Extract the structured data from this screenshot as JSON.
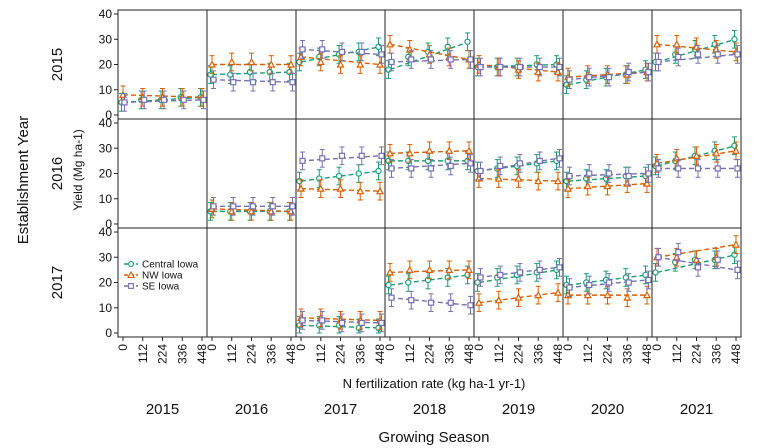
{
  "chart_data": {
    "type": "line",
    "title": "",
    "xlabel": "N fertilization rate (kg ha-1 yr-1)",
    "ylabel": "Yield (Mg ha-1)",
    "outer_xlabel": "Growing Season",
    "outer_ylabel": "Establishment Year",
    "x_ticks": [
      "0",
      "112",
      "224",
      "336",
      "448"
    ],
    "x_values": [
      0,
      112,
      224,
      336,
      448
    ],
    "y_ticks": [
      "0",
      "10",
      "20",
      "30",
      "40"
    ],
    "ylim": [
      0,
      40
    ],
    "columns": [
      "2015",
      "2016",
      "2017",
      "2018",
      "2019",
      "2020",
      "2021"
    ],
    "rows": [
      "2015",
      "2016",
      "2017"
    ],
    "legend": {
      "placement": "inside-left",
      "panel": "2017-2015"
    },
    "series": [
      {
        "name": "Central Iowa",
        "color": "#1a9e77"
      },
      {
        "name": "NW Iowa",
        "color": "#d95f02"
      },
      {
        "name": "SE Iowa",
        "color": "#7570b3"
      }
    ],
    "panels": [
      {
        "row": "2015",
        "col": "2015",
        "values": [
          [
            5,
            6,
            6,
            7,
            7
          ],
          [
            8,
            7,
            7,
            7,
            7
          ],
          [
            5,
            6,
            6,
            6,
            6
          ]
        ]
      },
      {
        "row": "2015",
        "col": "2016",
        "values": [
          [
            16,
            16,
            17,
            17,
            17
          ],
          [
            20,
            21,
            21,
            20,
            20
          ],
          [
            14,
            13,
            13,
            13,
            13
          ]
        ]
      },
      {
        "row": "2015",
        "col": "2017",
        "values": [
          [
            21,
            23,
            24,
            25,
            27
          ],
          [
            23,
            21,
            20,
            20,
            20
          ],
          [
            26,
            26,
            25,
            25,
            24
          ]
        ]
      },
      {
        "row": "2015",
        "col": "2018",
        "values": [
          [
            18,
            23,
            25,
            27,
            29
          ],
          [
            28,
            26,
            24,
            23,
            22
          ],
          [
            21,
            22,
            22,
            22,
            22
          ]
        ]
      },
      {
        "row": "2015",
        "col": "2019",
        "values": [
          [
            19,
            19,
            19,
            20,
            20
          ],
          [
            20,
            19,
            18,
            17,
            17
          ],
          [
            19,
            19,
            19,
            19,
            19
          ]
        ]
      },
      {
        "row": "2015",
        "col": "2020",
        "values": [
          [
            12,
            14,
            15,
            16,
            18
          ],
          [
            15,
            16,
            16,
            16,
            17
          ],
          [
            14,
            15,
            15,
            17,
            17
          ]
        ]
      },
      {
        "row": "2015",
        "col": "2021",
        "values": [
          [
            21,
            24,
            26,
            28,
            30
          ],
          [
            28,
            28,
            27,
            26,
            25
          ],
          [
            21,
            23,
            24,
            24,
            24
          ]
        ]
      },
      {
        "row": "2016",
        "col": "2016",
        "values": [
          [
            5,
            5,
            5,
            5,
            5
          ],
          [
            6,
            5,
            5,
            5,
            5
          ],
          [
            7,
            7,
            7,
            7,
            7
          ]
        ]
      },
      {
        "row": "2016",
        "col": "2017",
        "values": [
          [
            17,
            18,
            19,
            20,
            21
          ],
          [
            14,
            14,
            14,
            13,
            13
          ],
          [
            25,
            26,
            27,
            27,
            27
          ]
        ]
      },
      {
        "row": "2016",
        "col": "2018",
        "values": [
          [
            25,
            25,
            25,
            25,
            25
          ],
          [
            28,
            28,
            29,
            29,
            29
          ],
          [
            22,
            22,
            22,
            23,
            24
          ]
        ]
      },
      {
        "row": "2016",
        "col": "2019",
        "values": [
          [
            21,
            22,
            23,
            24,
            25
          ],
          [
            18,
            18,
            18,
            17,
            17
          ],
          [
            21,
            23,
            24,
            25,
            26
          ]
        ]
      },
      {
        "row": "2016",
        "col": "2020",
        "values": [
          [
            17,
            18,
            18,
            19,
            19
          ],
          [
            14,
            15,
            15,
            16,
            16
          ],
          [
            19,
            20,
            20,
            19,
            20
          ]
        ]
      },
      {
        "row": "2016",
        "col": "2021",
        "values": [
          [
            23,
            25,
            27,
            29,
            31
          ],
          [
            24,
            26,
            27,
            28,
            29
          ],
          [
            22,
            22,
            22,
            22,
            22
          ]
        ]
      },
      {
        "row": "2017",
        "col": "2017",
        "values": [
          [
            3,
            3,
            3,
            2,
            2
          ],
          [
            6,
            6,
            5,
            5,
            5
          ],
          [
            5,
            5,
            4,
            4,
            4
          ]
        ]
      },
      {
        "row": "2017",
        "col": "2018",
        "values": [
          [
            19,
            20,
            21,
            22,
            23
          ],
          [
            24,
            25,
            25,
            25,
            25
          ],
          [
            14,
            13,
            12,
            12,
            11
          ]
        ]
      },
      {
        "row": "2017",
        "col": "2019",
        "values": [
          [
            20,
            22,
            23,
            24,
            25
          ],
          [
            12,
            13,
            14,
            15,
            16
          ],
          [
            22,
            23,
            24,
            25,
            26
          ]
        ]
      },
      {
        "row": "2017",
        "col": "2020",
        "values": [
          [
            19,
            20,
            21,
            22,
            23
          ],
          [
            15,
            15,
            15,
            14,
            15
          ],
          [
            18,
            19,
            20,
            20,
            21
          ]
        ]
      },
      {
        "row": "2017",
        "col": "2021",
        "values": [
          [
            24,
            28,
            29,
            29,
            31
          ],
          [
            30,
            30,
            29,
            30,
            35
          ],
          [
            30,
            32,
            26,
            29,
            25
          ]
        ]
      }
    ]
  }
}
